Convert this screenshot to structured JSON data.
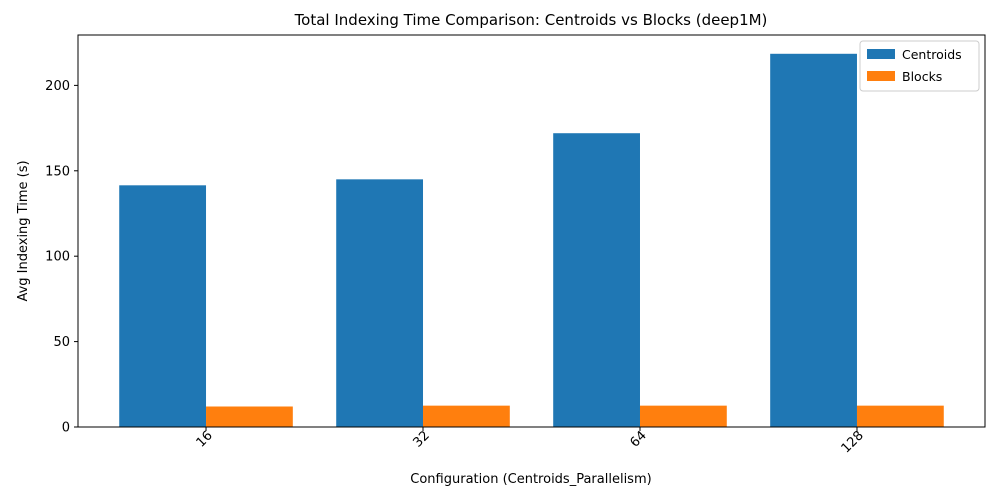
{
  "chart_data": {
    "type": "bar",
    "title": "Total Indexing Time Comparison: Centroids vs Blocks (deep1M)",
    "xlabel": "Configuration (Centroids_Parallelism)",
    "ylabel": "Avg Indexing Time (s)",
    "categories": [
      "16",
      "32",
      "64",
      "128"
    ],
    "series": [
      {
        "name": "Centroids",
        "color": "#1f77b4",
        "values": [
          141.5,
          145.0,
          172.0,
          218.5
        ]
      },
      {
        "name": "Blocks",
        "color": "#ff7f0e",
        "values": [
          12.0,
          12.5,
          12.5,
          12.5
        ]
      }
    ],
    "ylim": [
      0,
      229.5
    ],
    "yticks": [
      0,
      50,
      100,
      150,
      200
    ],
    "xtick_rotation": 45,
    "grid": false,
    "legend_position": "top-right"
  }
}
